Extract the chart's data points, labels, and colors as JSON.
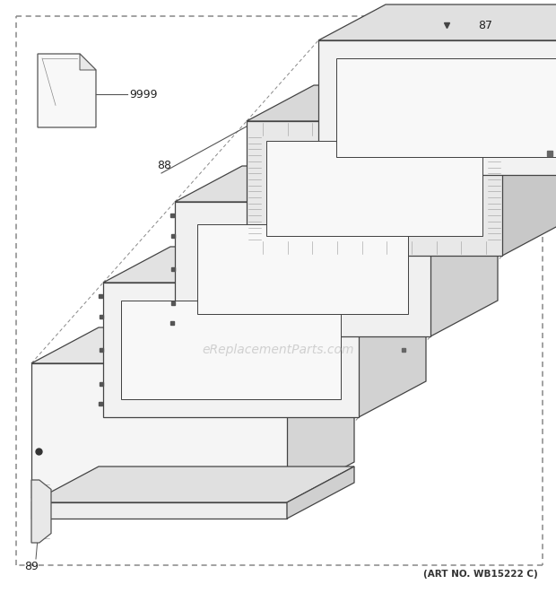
{
  "art_no": "(ART NO. WB15222 C)",
  "watermark": "eReplacementParts.com",
  "background_color": "#ffffff",
  "ec": "#444444",
  "fc_panel": "#f0f0f0",
  "fc_side": "#d8d8d8",
  "fc_top_face": "#e8e8e8",
  "fc_gasket": "#bbbbbb",
  "dashed_color": "#888888",
  "label_color": "#222222"
}
